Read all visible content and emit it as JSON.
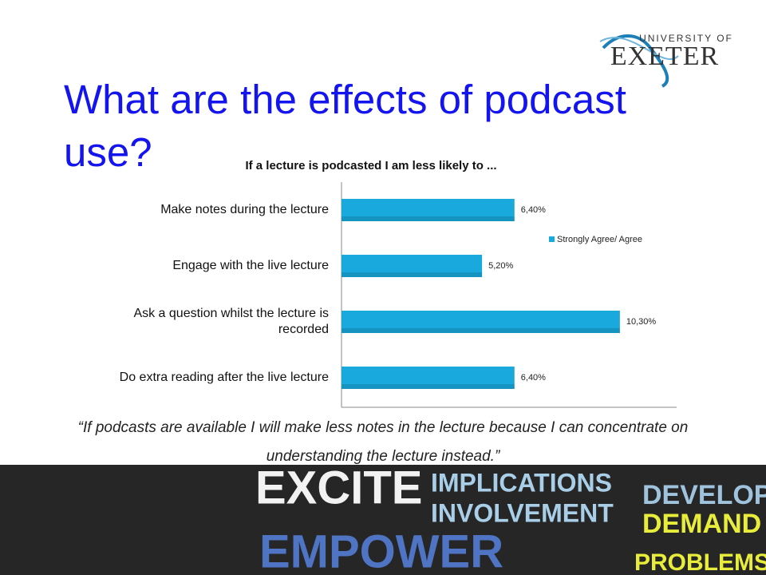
{
  "slide": {
    "title": "What are the effects of podcast use?",
    "quote": "“If podcasts are available I will make less notes in the lecture because I can concentrate on understanding the lecture instead.”",
    "logo": {
      "line1": "UNIVERSITY OF",
      "line2": "EXETER"
    },
    "banner_words": [
      "EXCITE",
      "IMPLICATIONS",
      "INVOLVEMENT",
      "DEVELOP",
      "DEMAND",
      "EMPOWER",
      "PROBLEMS"
    ]
  },
  "chart_data": {
    "type": "hbar",
    "title": "If a lecture is podcasted I am less likely to ...",
    "categories": [
      "Make notes during the lecture",
      "Engage with the live lecture",
      "Ask a question whilst the lecture is recorded",
      "Do extra reading after the live lecture"
    ],
    "series": [
      {
        "name": "Strongly Agree/ Agree",
        "color": "#19a9dc",
        "values": [
          6.4,
          5.2,
          10.3,
          6.4
        ],
        "value_labels": [
          "6,40%",
          "5,20%",
          "10,30%",
          "6,40%"
        ]
      }
    ],
    "xlim": [
      0,
      12.4
    ],
    "legend": "right"
  }
}
